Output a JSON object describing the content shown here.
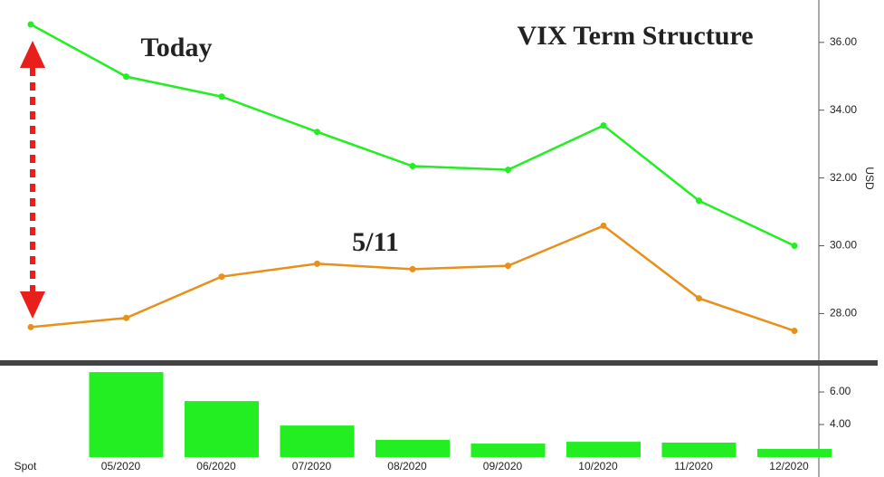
{
  "chart_data": [
    {
      "type": "line",
      "title": "VIX Term Structure",
      "y_label": "USD",
      "series": [
        {
          "name": "Today",
          "color": "#22ee22",
          "values": [
            36.53,
            34.99,
            34.4,
            33.36,
            32.35,
            32.24,
            33.55,
            31.33,
            30.0
          ]
        },
        {
          "name": "5/11",
          "color": "#e8901a",
          "values": [
            27.6,
            27.87,
            29.09,
            29.47,
            29.31,
            29.41,
            30.59,
            28.45,
            27.49
          ]
        }
      ],
      "ylim": [
        26.65,
        37.25
      ],
      "yticks": [
        {
          "value": 28,
          "label": "28.00"
        },
        {
          "value": 30,
          "label": "30.00"
        },
        {
          "value": 32,
          "label": "32.00"
        },
        {
          "value": 34,
          "label": "34.00"
        },
        {
          "value": 36,
          "label": "36.00"
        }
      ]
    },
    {
      "type": "bar",
      "color": "#22ee22",
      "categories": [
        "Spot",
        "05/2020",
        "06/2020",
        "07/2020",
        "08/2020",
        "09/2020",
        "10/2020",
        "11/2020",
        "12/2020"
      ],
      "values": [
        null,
        7.22,
        5.44,
        3.94,
        3.06,
        2.83,
        2.94,
        2.89,
        2.5
      ],
      "ylim": [
        2.0,
        7.56
      ],
      "yticks": [
        {
          "value": 4,
          "label": "4.00"
        },
        {
          "value": 6,
          "label": "6.00"
        }
      ]
    }
  ]
}
